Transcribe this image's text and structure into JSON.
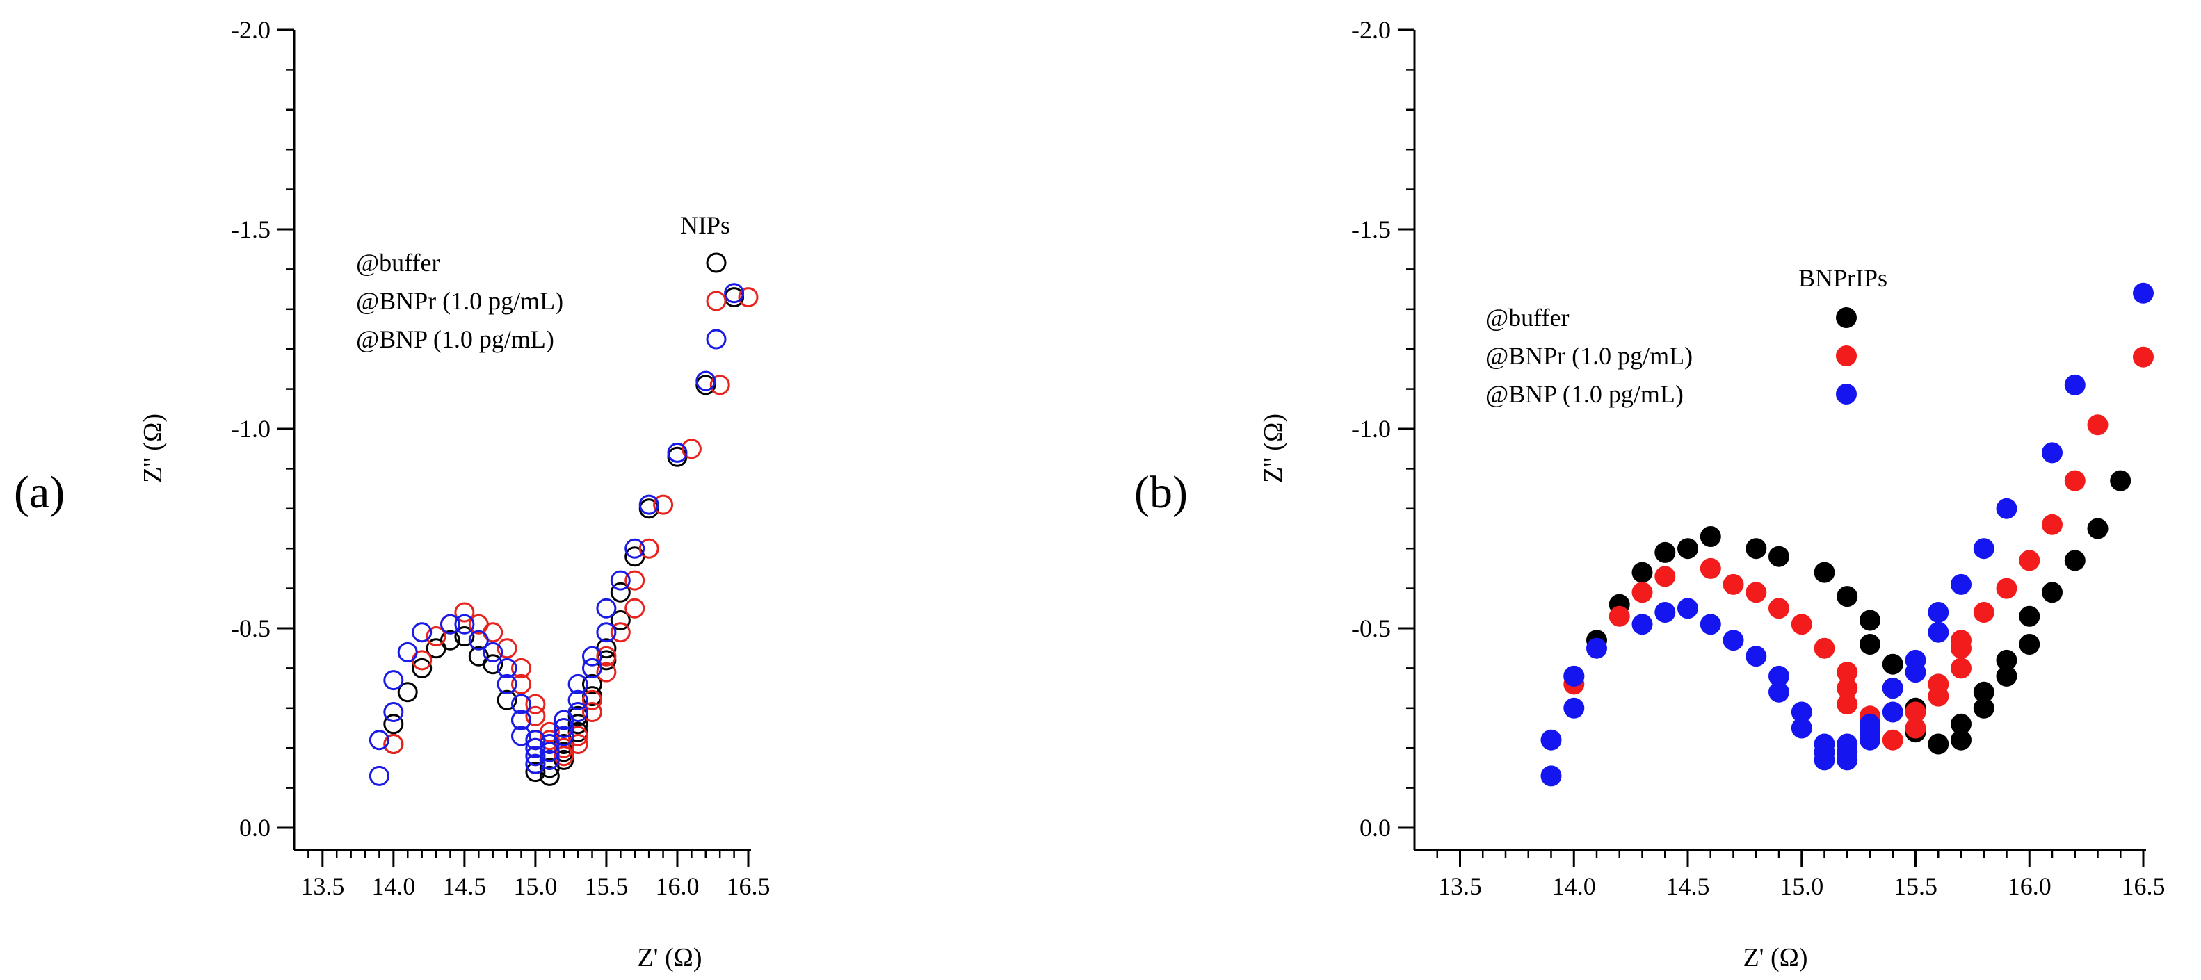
{
  "chart_data": [
    {
      "panel_label": "(a)",
      "type": "scatter",
      "marker": "open-circle",
      "xlabel": "Z' (Ω)",
      "ylabel": "Z'' (Ω)",
      "xlim": [
        13.3,
        16.5
      ],
      "ylim": [
        0.0,
        -2.0
      ],
      "y_axis_inverted": true,
      "x_ticks": [
        13.5,
        14.0,
        14.5,
        15.0,
        15.5,
        16.0,
        16.5
      ],
      "x_tick_labels": [
        "13.5",
        "14.0",
        "14.5",
        "15.0",
        "15.5",
        "16.0",
        "16.5"
      ],
      "y_ticks": [
        0.0,
        -0.5,
        -1.0,
        -1.5,
        -2.0
      ],
      "y_tick_labels": [
        "0.0",
        "-0.5",
        "-1.0",
        "-1.5",
        "-2.0"
      ],
      "legend_title": "NIPs",
      "legend_position": "upper-left",
      "series": [
        {
          "name": "@buffer",
          "color": "#000000",
          "x": [
            14.0,
            14.0,
            14.1,
            14.2,
            14.3,
            14.4,
            14.5,
            14.6,
            14.7,
            14.8,
            14.9,
            15.0,
            15.0,
            15.0,
            15.0,
            15.0,
            15.1,
            15.1,
            15.1,
            15.1,
            15.2,
            15.2,
            15.2,
            15.3,
            15.3,
            15.3,
            15.4,
            15.4,
            15.5,
            15.5,
            15.6,
            15.6,
            15.7,
            15.8,
            16.0,
            16.2,
            16.4
          ],
          "y": [
            -0.21,
            -0.26,
            -0.34,
            -0.4,
            -0.45,
            -0.47,
            -0.48,
            -0.43,
            -0.41,
            -0.32,
            -0.27,
            -0.14,
            -0.16,
            -0.18,
            -0.2,
            -0.22,
            -0.13,
            -0.15,
            -0.17,
            -0.19,
            -0.17,
            -0.19,
            -0.21,
            -0.24,
            -0.26,
            -0.28,
            -0.33,
            -0.36,
            -0.42,
            -0.45,
            -0.52,
            -0.59,
            -0.68,
            -0.8,
            -0.93,
            -1.11,
            -1.33
          ]
        },
        {
          "name": "@BNPr (1.0 pg/mL)",
          "color": "#e8231d",
          "x": [
            14.0,
            14.2,
            14.3,
            14.4,
            14.5,
            14.6,
            14.7,
            14.8,
            14.9,
            14.9,
            15.0,
            15.0,
            15.1,
            15.1,
            15.2,
            15.2,
            15.3,
            15.3,
            15.4,
            15.4,
            15.5,
            15.5,
            15.6,
            15.7,
            15.7,
            15.8,
            15.9,
            16.1,
            16.3,
            16.5
          ],
          "y": [
            -0.21,
            -0.42,
            -0.48,
            -0.51,
            -0.54,
            -0.51,
            -0.49,
            -0.45,
            -0.4,
            -0.36,
            -0.31,
            -0.28,
            -0.24,
            -0.22,
            -0.18,
            -0.2,
            -0.21,
            -0.23,
            -0.29,
            -0.32,
            -0.39,
            -0.43,
            -0.49,
            -0.55,
            -0.62,
            -0.7,
            -0.81,
            -0.95,
            -1.11,
            -1.33
          ]
        },
        {
          "name": "@BNP (1.0 pg/mL)",
          "color": "#1a1ae6",
          "x": [
            13.9,
            13.9,
            14.0,
            14.0,
            14.1,
            14.2,
            14.4,
            14.5,
            14.6,
            14.7,
            14.8,
            14.8,
            14.9,
            14.9,
            14.9,
            15.0,
            15.0,
            15.0,
            15.0,
            15.1,
            15.1,
            15.1,
            15.2,
            15.2,
            15.2,
            15.3,
            15.3,
            15.3,
            15.4,
            15.4,
            15.5,
            15.5,
            15.6,
            15.7,
            15.8,
            16.0,
            16.2,
            16.4
          ],
          "y": [
            -0.13,
            -0.22,
            -0.29,
            -0.37,
            -0.44,
            -0.49,
            -0.51,
            -0.51,
            -0.47,
            -0.44,
            -0.36,
            -0.4,
            -0.23,
            -0.27,
            -0.31,
            -0.16,
            -0.18,
            -0.2,
            -0.22,
            -0.17,
            -0.19,
            -0.21,
            -0.23,
            -0.25,
            -0.27,
            -0.29,
            -0.32,
            -0.36,
            -0.4,
            -0.43,
            -0.49,
            -0.55,
            -0.62,
            -0.7,
            -0.81,
            -0.94,
            -1.12,
            -1.34
          ]
        }
      ]
    },
    {
      "panel_label": "(b)",
      "type": "scatter",
      "marker": "filled-circle",
      "xlabel": "Z' (Ω)",
      "ylabel": "Z'' (Ω)",
      "xlim": [
        13.3,
        16.5
      ],
      "ylim": [
        0.0,
        -2.0
      ],
      "y_axis_inverted": true,
      "x_ticks": [
        13.5,
        14.0,
        14.5,
        15.0,
        15.5,
        16.0,
        16.5
      ],
      "x_tick_labels": [
        "13.5",
        "14.0",
        "14.5",
        "15.0",
        "15.5",
        "16.0",
        "16.5"
      ],
      "y_ticks": [
        0.0,
        -0.5,
        -1.0,
        -1.5,
        -2.0
      ],
      "y_tick_labels": [
        "0.0",
        "-0.5",
        "-1.0",
        "-1.5",
        "-2.0"
      ],
      "legend_title": "BNPrIPs",
      "legend_position": "upper-left",
      "series": [
        {
          "name": "@buffer",
          "color": "#000000",
          "x": [
            14.0,
            14.1,
            14.2,
            14.3,
            14.4,
            14.5,
            14.6,
            14.8,
            14.9,
            15.1,
            15.2,
            15.3,
            15.3,
            15.4,
            15.4,
            15.5,
            15.5,
            15.6,
            15.7,
            15.7,
            15.8,
            15.8,
            15.9,
            15.9,
            16.0,
            16.0,
            16.1,
            16.2,
            16.3,
            16.4
          ],
          "y": [
            -0.38,
            -0.47,
            -0.56,
            -0.64,
            -0.69,
            -0.7,
            -0.73,
            -0.7,
            -0.68,
            -0.64,
            -0.58,
            -0.52,
            -0.46,
            -0.41,
            -0.35,
            -0.3,
            -0.24,
            -0.21,
            -0.22,
            -0.26,
            -0.3,
            -0.34,
            -0.38,
            -0.42,
            -0.46,
            -0.53,
            -0.59,
            -0.67,
            -0.75,
            -0.87
          ]
        },
        {
          "name": "@BNPr (1.0 pg/mL)",
          "color": "#f21c1c",
          "x": [
            14.0,
            14.2,
            14.3,
            14.4,
            14.6,
            14.7,
            14.8,
            14.9,
            15.0,
            15.1,
            15.2,
            15.2,
            15.2,
            15.3,
            15.4,
            15.5,
            15.5,
            15.6,
            15.6,
            15.7,
            15.7,
            15.7,
            15.8,
            15.9,
            16.0,
            16.1,
            16.2,
            16.3,
            16.5
          ],
          "y": [
            -0.36,
            -0.53,
            -0.59,
            -0.63,
            -0.65,
            -0.61,
            -0.59,
            -0.55,
            -0.51,
            -0.45,
            -0.39,
            -0.35,
            -0.31,
            -0.28,
            -0.22,
            -0.25,
            -0.29,
            -0.33,
            -0.36,
            -0.4,
            -0.45,
            -0.47,
            -0.54,
            -0.6,
            -0.67,
            -0.76,
            -0.87,
            -1.01,
            -1.18
          ]
        },
        {
          "name": "@BNP (1.0 pg/mL)",
          "color": "#1515f0",
          "x": [
            13.9,
            13.9,
            14.0,
            14.0,
            14.1,
            14.3,
            14.4,
            14.5,
            14.6,
            14.7,
            14.8,
            14.9,
            14.9,
            15.0,
            15.0,
            15.1,
            15.1,
            15.1,
            15.2,
            15.2,
            15.2,
            15.3,
            15.3,
            15.3,
            15.4,
            15.4,
            15.5,
            15.5,
            15.6,
            15.6,
            15.7,
            15.8,
            15.9,
            16.1,
            16.2,
            16.5
          ],
          "y": [
            -0.13,
            -0.22,
            -0.3,
            -0.38,
            -0.45,
            -0.51,
            -0.54,
            -0.55,
            -0.51,
            -0.47,
            -0.43,
            -0.38,
            -0.34,
            -0.29,
            -0.25,
            -0.21,
            -0.19,
            -0.17,
            -0.21,
            -0.19,
            -0.17,
            -0.22,
            -0.24,
            -0.26,
            -0.29,
            -0.35,
            -0.39,
            -0.42,
            -0.49,
            -0.54,
            -0.61,
            -0.7,
            -0.8,
            -0.94,
            -1.11,
            -1.34
          ]
        }
      ]
    }
  ]
}
